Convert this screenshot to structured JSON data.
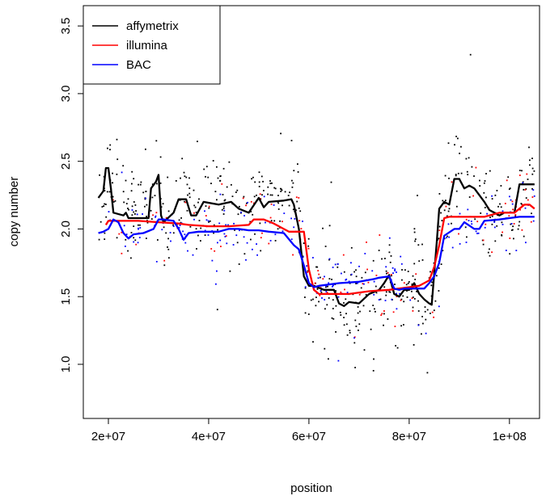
{
  "chart_data": {
    "type": "line",
    "xlabel": "position",
    "ylabel": "copy number",
    "xlim": [
      15000000,
      106000000
    ],
    "ylim": [
      0.6,
      3.65
    ],
    "x_ticks": [
      20000000,
      40000000,
      60000000,
      80000000,
      100000000
    ],
    "x_tick_labels": [
      "2e+07",
      "4e+07",
      "6e+07",
      "8e+07",
      "1e+08"
    ],
    "y_ticks": [
      1.0,
      1.5,
      2.0,
      2.5,
      3.0,
      3.5
    ],
    "y_tick_labels": [
      "1.0",
      "1.5",
      "2.0",
      "2.5",
      "3.0",
      "3.5"
    ],
    "legend_position": "top-left",
    "series": [
      {
        "name": "affymetrix",
        "color": "#000000",
        "x": [
          18000000,
          19000000,
          19500000,
          20000000,
          20500000,
          21000000,
          23000000,
          23500000,
          24000000,
          25500000,
          28000000,
          28500000,
          29500000,
          30000000,
          30500000,
          31000000,
          33000000,
          34000000,
          35500000,
          36500000,
          37500000,
          39000000,
          42000000,
          44500000,
          46000000,
          48000000,
          50000000,
          51000000,
          52000000,
          55000000,
          56500000,
          57000000,
          58000000,
          59000000,
          60000000,
          61000000,
          63000000,
          65000000,
          66000000,
          67000000,
          68000000,
          70000000,
          72000000,
          74000000,
          75000000,
          76000000,
          77000000,
          78000000,
          79000000,
          80000000,
          81000000,
          82000000,
          83000000,
          84000000,
          84500000,
          85500000,
          86000000,
          87000000,
          88000000,
          89000000,
          90000000,
          91000000,
          92000000,
          93000000,
          94000000,
          95000000,
          96000000,
          97000000,
          98000000,
          99000000,
          101000000,
          102000000,
          103000000,
          105000000
        ],
        "y": [
          2.23,
          2.28,
          2.45,
          2.45,
          2.3,
          2.12,
          2.1,
          2.12,
          2.08,
          2.08,
          2.08,
          2.3,
          2.35,
          2.4,
          2.1,
          2.05,
          2.12,
          2.22,
          2.22,
          2.1,
          2.1,
          2.2,
          2.18,
          2.2,
          2.15,
          2.12,
          2.23,
          2.16,
          2.2,
          2.21,
          2.22,
          2.18,
          2.0,
          1.65,
          1.58,
          1.58,
          1.55,
          1.55,
          1.45,
          1.43,
          1.46,
          1.45,
          1.52,
          1.55,
          1.6,
          1.66,
          1.52,
          1.5,
          1.55,
          1.55,
          1.6,
          1.52,
          1.48,
          1.45,
          1.44,
          1.9,
          2.15,
          2.2,
          2.18,
          2.37,
          2.37,
          2.3,
          2.32,
          2.3,
          2.25,
          2.2,
          2.14,
          2.12,
          2.1,
          2.12,
          2.12,
          2.33,
          2.33,
          2.33
        ]
      },
      {
        "name": "illumina",
        "color": "#ff0000",
        "x": [
          19500000,
          20000000,
          21000000,
          23000000,
          26000000,
          30000000,
          34000000,
          36000000,
          40000000,
          44000000,
          48000000,
          49000000,
          51000000,
          53000000,
          56000000,
          57000000,
          58000000,
          59000000,
          60000000,
          61000000,
          62000000,
          66000000,
          68000000,
          72000000,
          76000000,
          78000000,
          80000000,
          82000000,
          84000000,
          85000000,
          86000000,
          87000000,
          88000000,
          90000000,
          95000000,
          98000000,
          101000000,
          103000000,
          104000000,
          105000000
        ],
        "y": [
          2.03,
          2.06,
          2.06,
          2.06,
          2.06,
          2.05,
          2.04,
          2.03,
          2.02,
          2.02,
          2.03,
          2.07,
          2.07,
          2.04,
          1.98,
          1.98,
          1.98,
          1.98,
          1.7,
          1.55,
          1.52,
          1.52,
          1.52,
          1.54,
          1.55,
          1.56,
          1.57,
          1.58,
          1.62,
          1.72,
          1.88,
          2.08,
          2.09,
          2.09,
          2.09,
          2.12,
          2.12,
          2.18,
          2.18,
          2.15
        ]
      },
      {
        "name": "BAC",
        "color": "#0000ff",
        "x": [
          18000000,
          19000000,
          20000000,
          21000000,
          22000000,
          23000000,
          24000000,
          25000000,
          27000000,
          29000000,
          30000000,
          31000000,
          33000000,
          34000000,
          35000000,
          36000000,
          38000000,
          40000000,
          42000000,
          44000000,
          46000000,
          48000000,
          50000000,
          52000000,
          55000000,
          57000000,
          58000000,
          59000000,
          60000000,
          61000000,
          62000000,
          66000000,
          70000000,
          73000000,
          74000000,
          76000000,
          77000000,
          78000000,
          79000000,
          81000000,
          83000000,
          84000000,
          85000000,
          86000000,
          87000000,
          89000000,
          90000000,
          91000000,
          93000000,
          94000000,
          95000000,
          98000000,
          100000000,
          102000000,
          105000000
        ],
        "y": [
          1.97,
          1.98,
          2.0,
          2.07,
          2.05,
          1.97,
          1.93,
          1.96,
          1.97,
          2.0,
          2.07,
          2.07,
          2.06,
          2.0,
          1.92,
          1.97,
          1.98,
          1.98,
          1.98,
          2.0,
          2.0,
          1.99,
          1.99,
          1.98,
          1.97,
          1.88,
          1.85,
          1.73,
          1.6,
          1.57,
          1.58,
          1.6,
          1.61,
          1.63,
          1.64,
          1.65,
          1.56,
          1.55,
          1.56,
          1.56,
          1.56,
          1.6,
          1.65,
          1.75,
          1.95,
          2.0,
          2.0,
          2.05,
          2.0,
          2.0,
          2.06,
          2.07,
          2.08,
          2.09,
          2.09
        ]
      }
    ]
  }
}
